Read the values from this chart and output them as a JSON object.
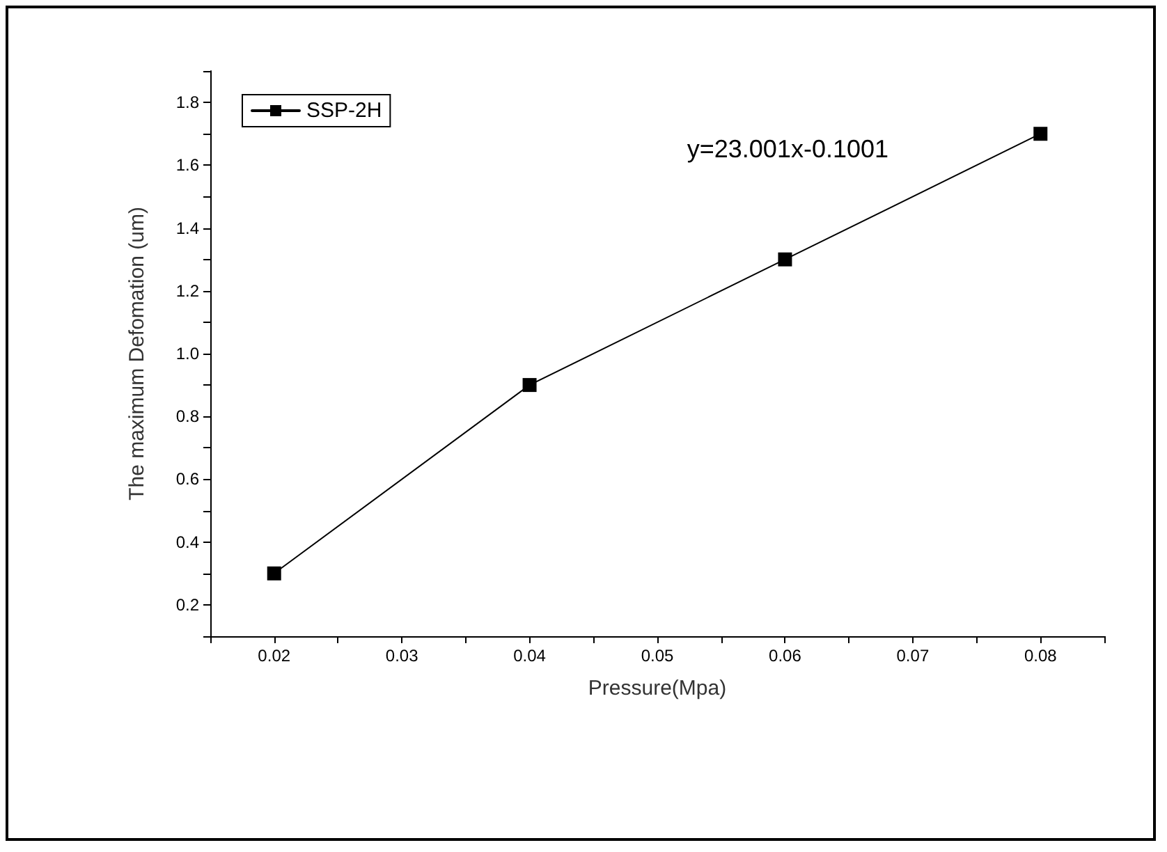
{
  "chart_data": {
    "type": "line",
    "xlabel": "Pressure(Mpa)",
    "ylabel": "The maximum Defomation (um)",
    "x": [
      0.02,
      0.04,
      0.06,
      0.08
    ],
    "series": [
      {
        "name": "SSP-2H",
        "color": "#000000",
        "values": [
          0.3,
          0.9,
          1.3,
          1.7
        ]
      }
    ],
    "xlim": [
      0.015,
      0.085
    ],
    "xticks": [
      {
        "value": 0.015,
        "label": null
      },
      0.02,
      {
        "value": 0.025,
        "label": null
      },
      0.03,
      {
        "value": 0.035,
        "label": null
      },
      0.04,
      {
        "value": 0.045,
        "label": null
      },
      0.05,
      {
        "value": 0.055,
        "label": null
      },
      0.06,
      {
        "value": 0.065,
        "label": null
      },
      0.07,
      {
        "value": 0.075,
        "label": null
      },
      0.08,
      {
        "value": 0.085,
        "label": null
      }
    ],
    "ylim": [
      0.1,
      1.9
    ],
    "yticks": [
      {
        "value": 0.1,
        "label": null
      },
      0.2,
      {
        "value": 0.3,
        "label": null
      },
      0.4,
      {
        "value": 0.5,
        "label": null
      },
      0.6,
      {
        "value": 0.7,
        "label": null
      },
      0.8,
      {
        "value": 0.9,
        "label": null
      },
      {
        "value": 1.0,
        "label": "1.0"
      },
      {
        "value": 1.1,
        "label": null
      },
      1.2,
      {
        "value": 1.3,
        "label": null
      },
      1.4,
      {
        "value": 1.5,
        "label": null
      },
      1.6,
      {
        "value": 1.7,
        "label": null
      },
      1.8,
      {
        "value": 1.9,
        "label": null
      }
    ],
    "annotations": [
      "y=23.001x-0.1001"
    ],
    "legend": "top left",
    "marker": "square",
    "line_style": "solid",
    "grid": false
  }
}
